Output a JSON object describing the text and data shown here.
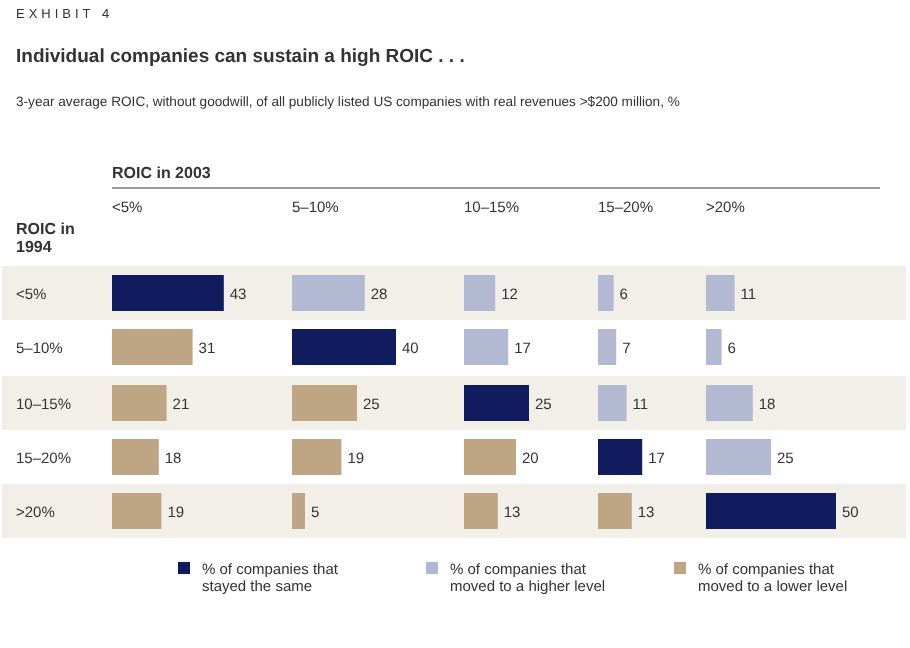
{
  "chart_data": [
    {
      "type": "bar",
      "orientation": "horizontal",
      "data_labels": true,
      "legend": "bottom",
      "title": "Individual companies can sustain a high ROIC . . .",
      "subtitle": "3-year average ROIC, without goodwill, of all publicly listed US companies with real revenues >$200 million, %",
      "annotations": [
        "EXHIBIT 4",
        "ROIC in 2003"
      ],
      "ylabel": "ROIC in 1994",
      "xlabel": "<5%",
      "categories": [
        "<5%",
        "5–10%",
        "10–15%",
        "15–20%",
        ">20%"
      ],
      "series": [
        {
          "name": "% of companies that stayed the same",
          "color": "#101c5e",
          "values": [
            43,
            null,
            null,
            null,
            null
          ]
        },
        {
          "name": "% of companies that moved to a higher level",
          "color": "#b3b9d2",
          "values": [
            null,
            null,
            null,
            null,
            null
          ]
        },
        {
          "name": "% of companies that moved to a lower level",
          "color": "#bea685",
          "values": [
            null,
            31,
            21,
            18,
            19
          ]
        }
      ]
    },
    {
      "type": "bar",
      "orientation": "horizontal",
      "data_labels": true,
      "xlabel": "5–10%",
      "series": [
        {
          "color": "#101c5e",
          "values": [
            null,
            40,
            null,
            null,
            null
          ]
        },
        {
          "color": "#b3b9d2",
          "values": [
            28,
            null,
            null,
            null,
            null
          ]
        },
        {
          "color": "#bea685",
          "values": [
            null,
            null,
            25,
            19,
            5
          ]
        }
      ]
    },
    {
      "type": "bar",
      "orientation": "horizontal",
      "data_labels": true,
      "xlabel": "10–15%",
      "series": [
        {
          "color": "#101c5e",
          "values": [
            null,
            null,
            25,
            null,
            null
          ]
        },
        {
          "color": "#b3b9d2",
          "values": [
            12,
            17,
            null,
            null,
            null
          ]
        },
        {
          "color": "#bea685",
          "values": [
            null,
            null,
            null,
            20,
            13
          ]
        }
      ]
    },
    {
      "type": "bar",
      "orientation": "horizontal",
      "data_labels": true,
      "xlabel": "15–20%",
      "series": [
        {
          "color": "#101c5e",
          "values": [
            null,
            null,
            null,
            17,
            null
          ]
        },
        {
          "color": "#b3b9d2",
          "values": [
            6,
            7,
            11,
            null,
            null
          ]
        },
        {
          "color": "#bea685",
          "values": [
            null,
            null,
            null,
            null,
            13
          ]
        }
      ]
    },
    {
      "type": "bar",
      "orientation": "horizontal",
      "data_labels": true,
      "xlabel": ">20%",
      "series": [
        {
          "color": "#101c5e",
          "values": [
            null,
            null,
            null,
            null,
            50
          ]
        },
        {
          "color": "#b3b9d2",
          "values": [
            11,
            6,
            18,
            25,
            null
          ]
        }
      ]
    }
  ]
}
